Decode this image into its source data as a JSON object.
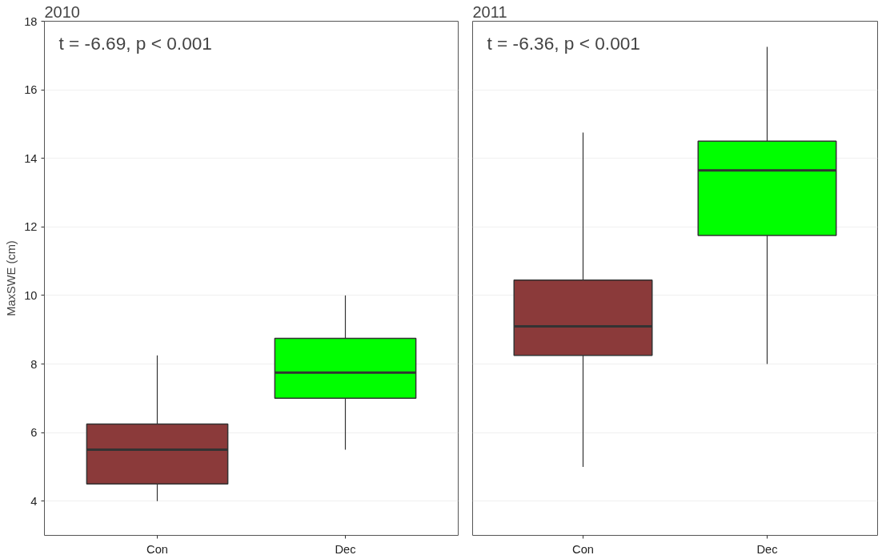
{
  "chart_data": [
    {
      "type": "box",
      "title": "2010",
      "ylabel": "MaxSWE (cm)",
      "categories": [
        "Con",
        "Dec"
      ],
      "colors": [
        "#8b3a3a",
        "#00ff00"
      ],
      "boxes": [
        {
          "low": 4.0,
          "q1": 4.5,
          "median": 5.5,
          "q3": 6.25,
          "high": 8.25
        },
        {
          "low": 5.5,
          "q1": 7.0,
          "median": 7.75,
          "q3": 8.75,
          "high": 10.0
        }
      ],
      "ylim": [
        3,
        18
      ],
      "yticks": [
        4,
        6,
        8,
        10,
        12,
        14,
        16,
        18
      ],
      "grid": "y",
      "annotations": [
        "t = -6.69,  p < 0.001"
      ]
    },
    {
      "type": "box",
      "title": "2011",
      "categories": [
        "Con",
        "Dec"
      ],
      "colors": [
        "#8b3a3a",
        "#00ff00"
      ],
      "boxes": [
        {
          "low": 5.0,
          "q1": 8.25,
          "median": 9.1,
          "q3": 10.45,
          "high": 14.75
        },
        {
          "low": 8.0,
          "q1": 11.75,
          "median": 13.65,
          "q3": 14.5,
          "high": 17.25
        }
      ],
      "ylim": [
        3,
        18
      ],
      "yticks": [
        4,
        6,
        8,
        10,
        12,
        14,
        16,
        18
      ],
      "grid": "y",
      "tick_labels": "x",
      "annotations": [
        "t = -6.36,  p < 0.001"
      ]
    }
  ]
}
